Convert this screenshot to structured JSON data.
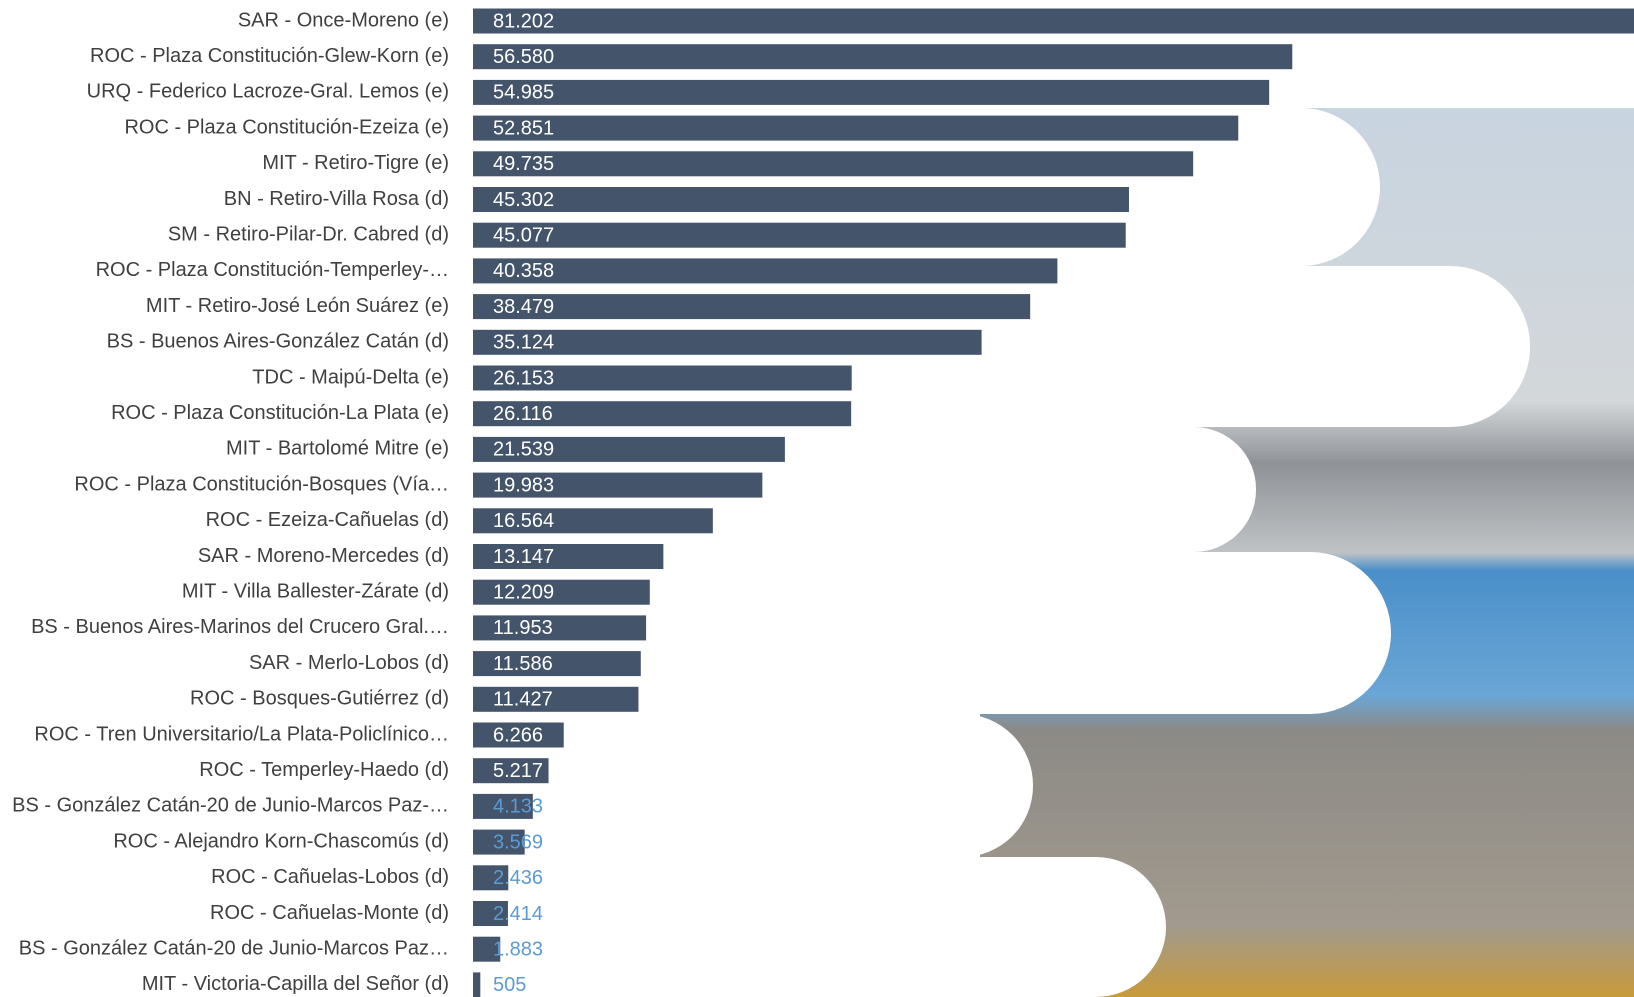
{
  "chart_data": {
    "type": "bar",
    "orientation": "horizontal",
    "color": "#44546a",
    "label_color": "#ffffff",
    "outside_label_color": "#5b9bd5",
    "categories": [
      "SAR - Once-Moreno (e)",
      "ROC - Plaza Constitución-Glew-Korn (e)",
      "URQ - Federico Lacroze-Gral. Lemos (e)",
      "ROC - Plaza Constitución-Ezeiza (e)",
      "MIT - Retiro-Tigre (e)",
      "BN - Retiro-Villa Rosa (d)",
      "SM - Retiro-Pilar-Dr. Cabred (d)",
      "ROC - Plaza Constitución-Temperley-…",
      "MIT - Retiro-José León Suárez (e)",
      "BS - Buenos Aires-González Catán (d)",
      "TDC - Maipú-Delta (e)",
      "ROC - Plaza Constitución-La Plata (e)",
      "MIT - Bartolomé Mitre (e)",
      "ROC - Plaza Constitución-Bosques (Vía…",
      "ROC - Ezeiza-Cañuelas (d)",
      "SAR - Moreno-Mercedes (d)",
      "MIT - Villa Ballester-Zárate (d)",
      "BS - Buenos Aires-Marinos del Crucero Gral.…",
      "SAR - Merlo-Lobos (d)",
      "ROC - Bosques-Gutiérrez (d)",
      "ROC - Tren Universitario/La Plata-Policlínico…",
      "ROC - Temperley-Haedo (d)",
      "BS - González Catán-20 de Junio-Marcos Paz-…",
      "ROC - Alejandro Korn-Chascomús (d)",
      "ROC - Cañuelas-Lobos (d)",
      "ROC - Cañuelas-Monte (d)",
      "BS - González Catán-20 de Junio-Marcos Paz…",
      "MIT - Victoria-Capilla del Señor (d)"
    ],
    "values": [
      81202,
      56580,
      54985,
      52851,
      49735,
      45302,
      45077,
      40358,
      38479,
      35124,
      26153,
      26116,
      21539,
      19983,
      16564,
      13147,
      12209,
      11953,
      11586,
      11427,
      6266,
      5217,
      4133,
      3569,
      2436,
      2414,
      1883,
      505
    ],
    "value_labels": [
      "81.202",
      "56.580",
      "54.985",
      "52.851",
      "49.735",
      "45.302",
      "45.077",
      "40.358",
      "38.479",
      "35.124",
      "26.153",
      "26.116",
      "21.539",
      "19.983",
      "16.564",
      "13.147",
      "12.209",
      "11.953",
      "11.586",
      "11.427",
      "6.266",
      "5.217",
      "4.133",
      "3.569",
      "2.436",
      "2.414",
      "1.883",
      "505"
    ]
  }
}
